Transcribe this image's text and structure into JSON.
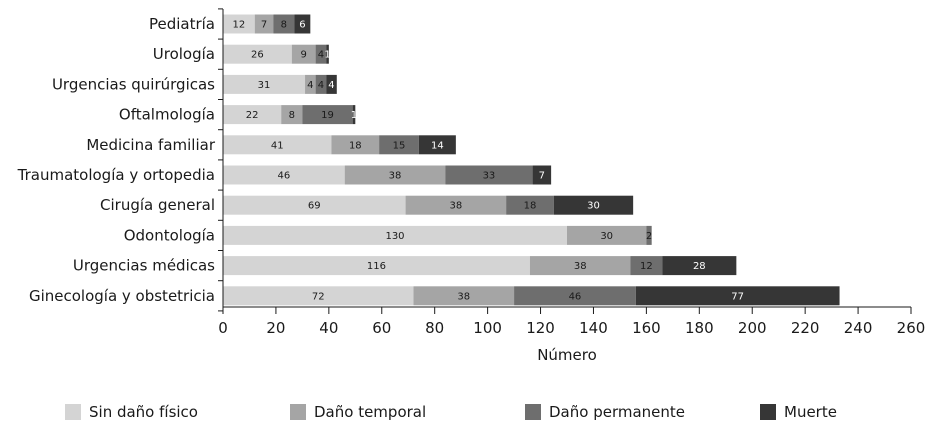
{
  "chart_data": {
    "type": "bar",
    "orientation": "horizontal",
    "stacked": true,
    "categories": [
      "Pediatría",
      "Urología",
      "Urgencias quirúrgicas",
      "Oftalmología",
      "Medicina familiar",
      "Traumatología y ortopedia",
      "Cirugía general",
      "Odontología",
      "Urgencias médicas",
      "Ginecología y obstetricia"
    ],
    "series": [
      {
        "name": "Sin daño físico",
        "color": "#d4d4d4",
        "label_color": "#1a1a1a",
        "values": [
          12,
          26,
          31,
          22,
          41,
          46,
          69,
          130,
          116,
          72
        ]
      },
      {
        "name": "Daño temporal",
        "color": "#a5a5a5",
        "label_color": "#1a1a1a",
        "values": [
          7,
          9,
          4,
          8,
          18,
          38,
          38,
          30,
          38,
          38
        ]
      },
      {
        "name": "Daño permanente",
        "color": "#6e6e6e",
        "label_color": "#1a1a1a",
        "values": [
          8,
          4,
          4,
          19,
          15,
          33,
          18,
          2,
          12,
          46
        ]
      },
      {
        "name": "Muerte",
        "color": "#363636",
        "label_color": "#ffffff",
        "values": [
          6,
          1,
          4,
          1,
          14,
          7,
          30,
          0,
          28,
          77
        ]
      }
    ],
    "xlabel": "Número",
    "ylabel": "",
    "xlim": [
      0,
      260
    ],
    "xticks": [
      0,
      20,
      40,
      60,
      80,
      100,
      120,
      140,
      160,
      180,
      200,
      220,
      240,
      260
    ],
    "grid": false,
    "legend_position": "bottom"
  }
}
